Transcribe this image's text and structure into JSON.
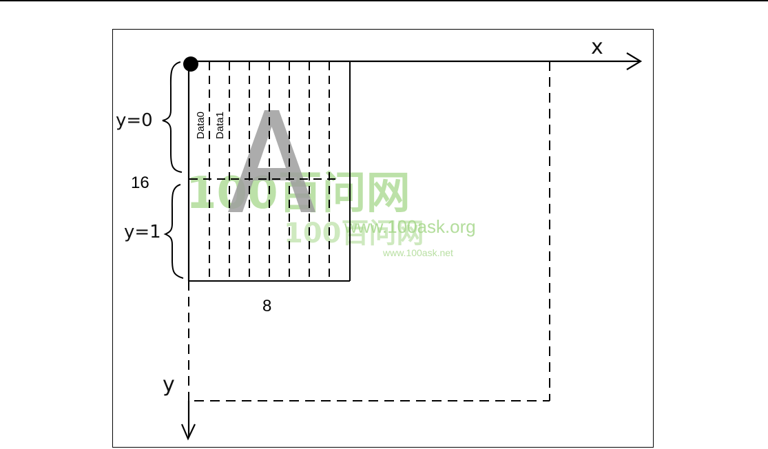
{
  "labels": {
    "x_axis": "x",
    "y_axis": "y",
    "row_y0": "y=0",
    "row_y1": "y=1",
    "height": "16",
    "width": "8",
    "col0": "Data0",
    "col1": "Data1"
  },
  "glyph": {
    "character": "A",
    "glyph_color": "#9e9e9e"
  },
  "watermark": {
    "text_large": "100百问网",
    "url_large": "www.100ask.org",
    "text_small": "100百问网",
    "url_small": "www.100ask.net",
    "color": "#a6d78b"
  },
  "colors": {
    "line": "#000000",
    "background": "#ffffff"
  }
}
